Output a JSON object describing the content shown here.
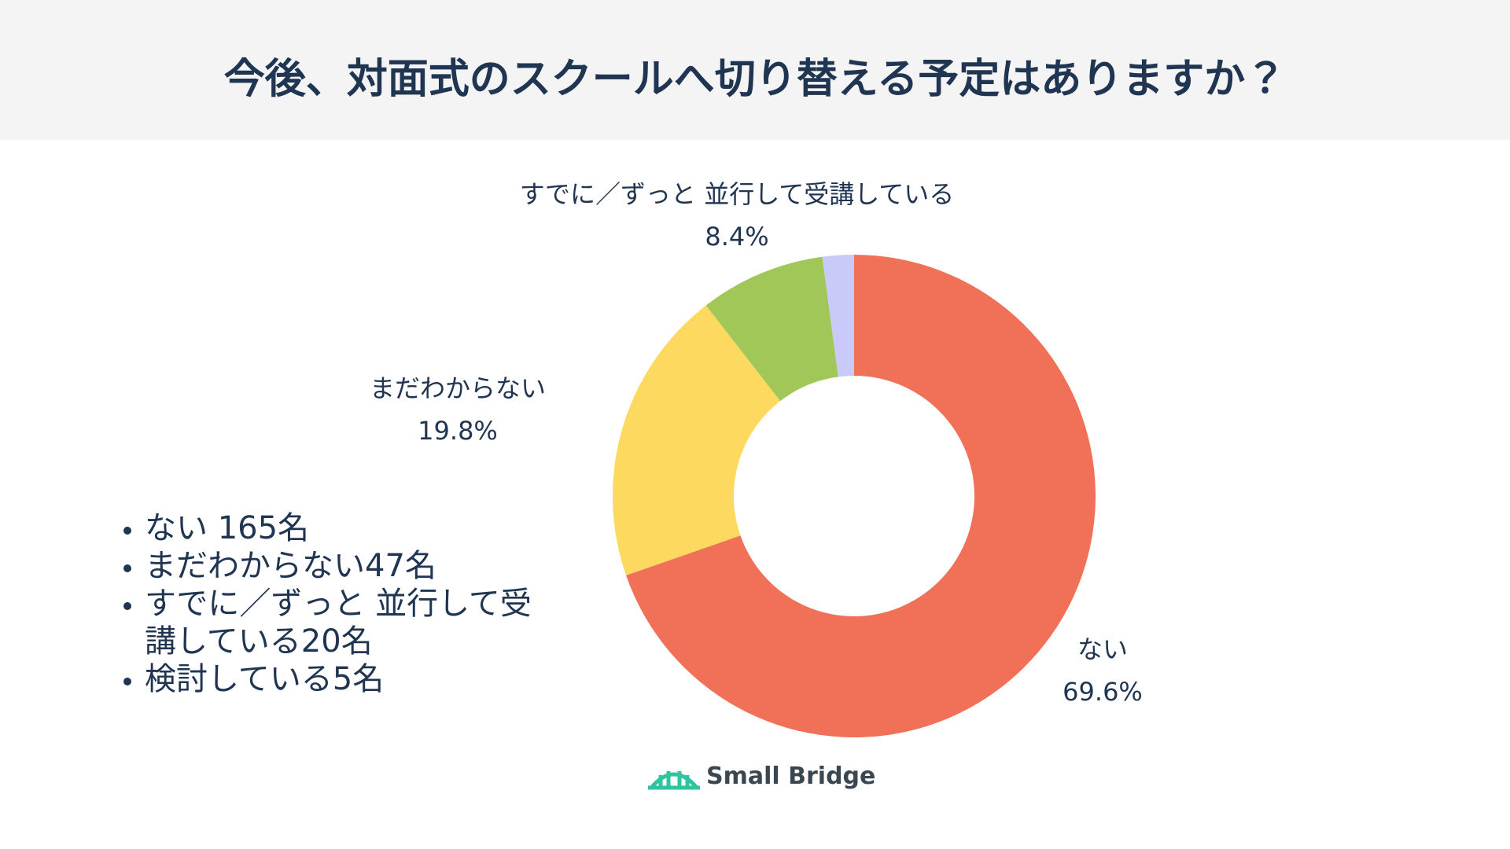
{
  "chart_data": {
    "type": "donut",
    "title": "今後、対面式のスクールへ切り替える予定はありますか？",
    "categories": [
      "ない",
      "まだわからない",
      "すでに／ずっと 並行して受講している",
      null
    ],
    "values": [
      69.6,
      19.8,
      8.4,
      2.1
    ],
    "value_labels": [
      "69.6%",
      "19.8%",
      "8.4%",
      null
    ],
    "colors": [
      "#f07058",
      "#fdd95f",
      "#a2c759",
      "#c9caf9"
    ]
  },
  "notes": [
    "ない 165名",
    "まだわからない47名",
    "すでに／ずっと 並行して受講している20名",
    "検討している5名"
  ],
  "logo": "Small Bridge"
}
